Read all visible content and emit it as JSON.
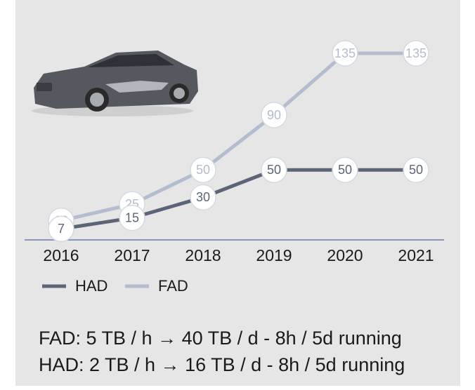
{
  "chart_data": {
    "type": "line",
    "categories": [
      "2016",
      "2017",
      "2018",
      "2019",
      "2020",
      "2021"
    ],
    "series": [
      {
        "name": "HAD",
        "color": "#5c6577",
        "values": [
          7,
          15,
          30,
          50,
          50,
          50
        ]
      },
      {
        "name": "FAD",
        "color": "#b3bdcf",
        "values": [
          13,
          25,
          50,
          90,
          135,
          135
        ]
      }
    ],
    "annotations": [
      "FAD:  5 TB / h → 40 TB / d  - 8h / 5d running",
      "HAD:  2 TB / h → 16 TB / d  - 8h / 5d running"
    ]
  }
}
